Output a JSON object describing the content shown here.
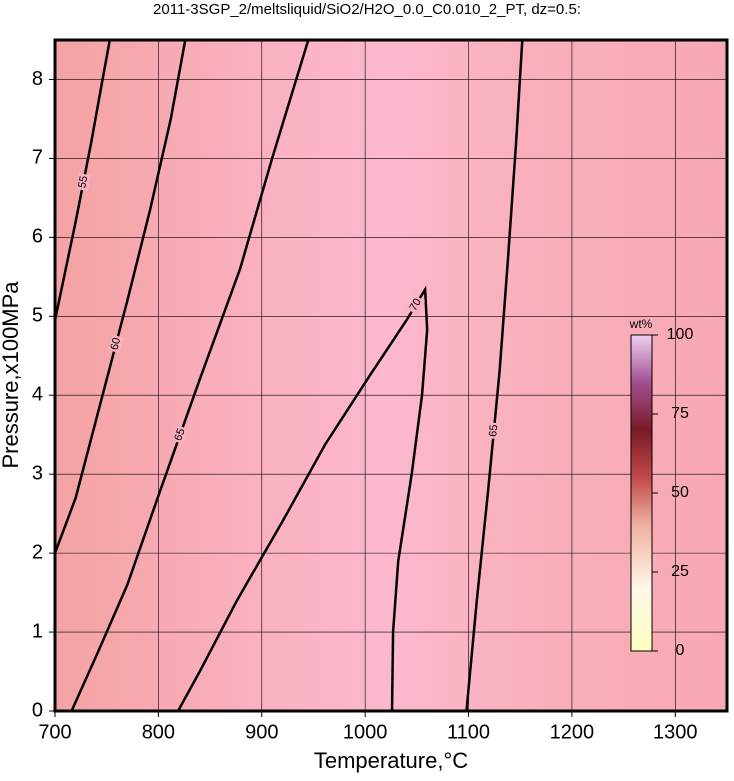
{
  "chart_data": {
    "type": "contour",
    "title": "2011-3SGP_2/meltsliquid/SiO2/H2O_0.0_C0.010_2_PT, dz=0.5:",
    "xlabel": "Temperature,°C",
    "ylabel": "Pressure,x100MPa",
    "xlim": [
      700,
      1350
    ],
    "ylim": [
      0,
      8.5
    ],
    "xticks": [
      700,
      800,
      900,
      1000,
      1100,
      1200,
      1300
    ],
    "yticks": [
      0,
      1,
      2,
      3,
      4,
      5,
      6,
      7,
      8
    ],
    "grid": true,
    "contours": [
      {
        "level": 55,
        "x": [
          700,
          720,
          735,
          746,
          753
        ],
        "y": [
          4.95,
          6.2,
          7.2,
          8.0,
          8.5
        ]
      },
      {
        "level": 60,
        "x": [
          700,
          720,
          748,
          770,
          792,
          812,
          826
        ],
        "y": [
          2.0,
          2.7,
          4.1,
          5.2,
          6.35,
          7.5,
          8.5
        ]
      },
      {
        "level": 65,
        "x": [
          716,
          740,
          770,
          802,
          840,
          879,
          910,
          945
        ],
        "y": [
          0,
          0.7,
          1.6,
          2.8,
          4.2,
          5.6,
          7.0,
          8.5
        ]
      },
      {
        "level": 70,
        "x": [
          819,
          840,
          876,
          920,
          961,
          1005,
          1040,
          1058,
          1060,
          1055,
          1045,
          1032,
          1027,
          1026
        ],
        "y": [
          0,
          0.5,
          1.4,
          2.4,
          3.37,
          4.26,
          4.95,
          5.34,
          4.83,
          4.0,
          3.0,
          1.9,
          1.0,
          0
        ]
      },
      {
        "level": 65,
        "x": [
          1098,
          1108,
          1119,
          1130,
          1138,
          1146,
          1152
        ],
        "y": [
          0,
          1.4,
          2.8,
          4.3,
          5.7,
          7.2,
          8.5
        ]
      }
    ],
    "colorbar": {
      "label": "wt%",
      "lim": [
        0,
        100
      ],
      "ticks": [
        0,
        25,
        50,
        75,
        100
      ]
    }
  }
}
